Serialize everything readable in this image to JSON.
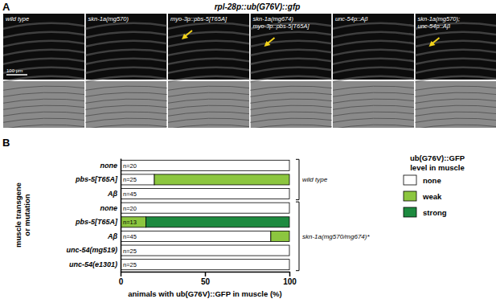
{
  "panel_labels": [
    "A",
    "B"
  ],
  "panel_a": {
    "title": "rpl-28p::ub(G76V)::gfp",
    "scale_bar": "100 μm",
    "images": [
      {
        "label": [
          "wild type"
        ],
        "arrow": false
      },
      {
        "label": [
          "skn-1a(mg570)"
        ],
        "arrow": false
      },
      {
        "label": [
          "myo-3p::pbs-5[T65A]"
        ],
        "arrow": true
      },
      {
        "label": [
          "skn-1a(mg674)",
          "myo-3p::pbs-5[T65A]"
        ],
        "arrow": true
      },
      {
        "label": [
          "unc-54p::Aβ"
        ],
        "arrow": false
      },
      {
        "label": [
          "skn-1a(mg570);",
          "unc-54p::Aβ"
        ],
        "arrow": true
      }
    ]
  },
  "chart_data": {
    "type": "bar",
    "orientation": "horizontal",
    "stacked": true,
    "categories": [
      "none",
      "pbs-5[T65A]",
      "Aβ",
      "none",
      "pbs-5[T65A]",
      "Aβ",
      "unc-54(mg519)",
      "unc-54(e1301)"
    ],
    "annotations": [
      "n=20",
      "n=25",
      "n=45",
      "n=20",
      "n=13",
      "n=45",
      "n=25",
      "n=25"
    ],
    "groups": [
      {
        "label": "wild type",
        "size": 3
      },
      {
        "label": "skn-1a(mg570/mg674)*",
        "size": 5
      }
    ],
    "series": [
      {
        "name": "none",
        "color": "#ffffff",
        "values": [
          100,
          20,
          100,
          100,
          0,
          89,
          100,
          100
        ]
      },
      {
        "name": "weak",
        "color": "#8cc63f",
        "values": [
          0,
          80,
          0,
          0,
          15,
          11,
          0,
          0
        ]
      },
      {
        "name": "strong",
        "color": "#1d8a3f",
        "values": [
          0,
          0,
          0,
          0,
          85,
          0,
          0,
          0
        ]
      }
    ],
    "xlim": [
      0,
      100
    ],
    "xticks": [
      0,
      50,
      100
    ],
    "x_label": "animals with ub(G76V)::GFP in muscle (%)",
    "y_label": [
      "muscle transgene",
      "or mutation"
    ],
    "legend_title": [
      "ub(G76V)::GFP",
      "level in muscle"
    ],
    "legend": "right"
  }
}
